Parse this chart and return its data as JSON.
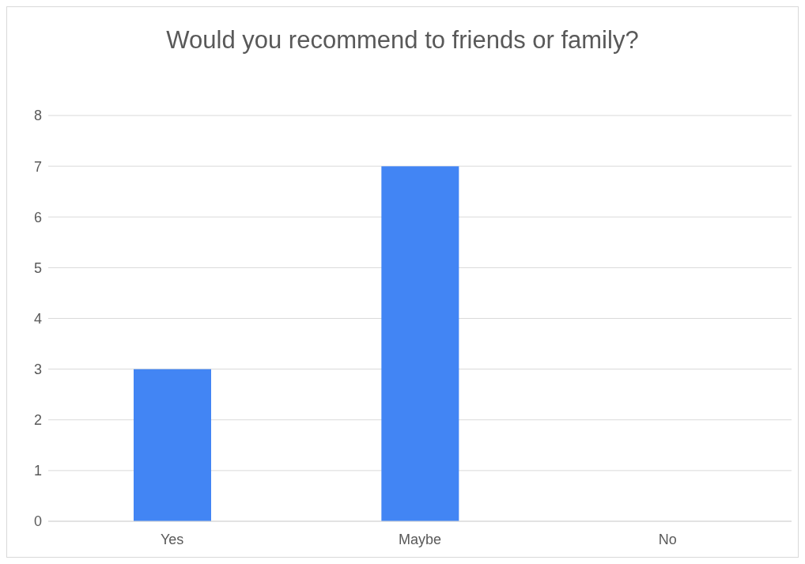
{
  "chart_data": {
    "type": "bar",
    "title": "Would you recommend to friends or family?",
    "categories": [
      "Yes",
      "Maybe",
      "No"
    ],
    "values": [
      3,
      7,
      0
    ],
    "color": "#4285f4",
    "ylim": [
      0,
      8
    ],
    "yticks": [
      0,
      1,
      2,
      3,
      4,
      5,
      6,
      7,
      8
    ],
    "grid": "y"
  }
}
